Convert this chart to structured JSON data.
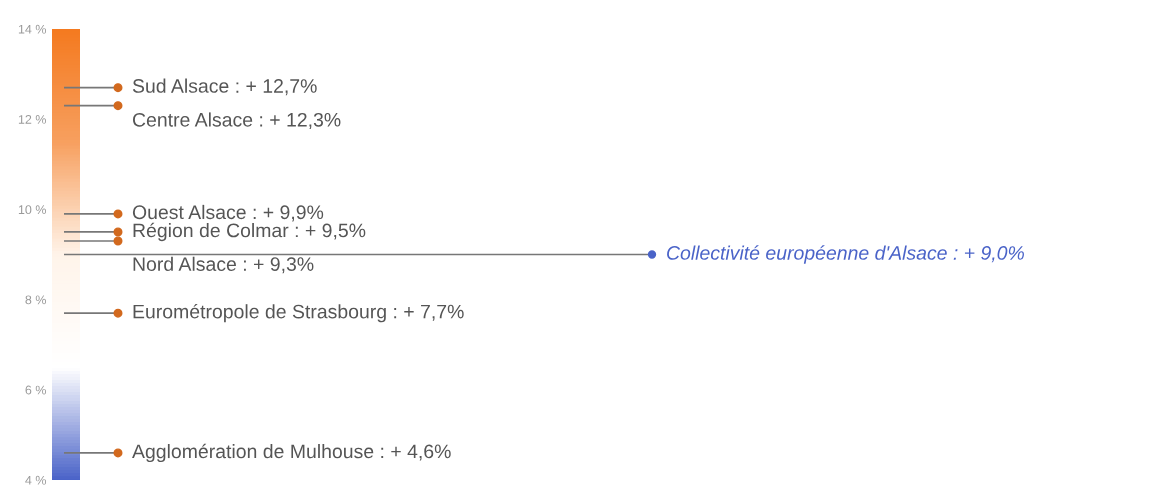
{
  "chart_data": {
    "type": "scatter",
    "categories": [
      null
    ],
    "ylim": [
      4,
      14
    ],
    "yticks": [
      {
        "value": 4,
        "label": "4 %"
      },
      {
        "value": 6,
        "label": "6 %"
      },
      {
        "value": 8,
        "label": "8 %"
      },
      {
        "value": 10,
        "label": "10 %"
      },
      {
        "value": 12,
        "label": "12 %"
      },
      {
        "value": 14,
        "label": "14 %"
      }
    ],
    "marker": "circle",
    "series": [
      {
        "color": "#d2691e",
        "values": [
          12.7
        ],
        "value_labels": [
          "Sud Alsace : + 12,7%"
        ]
      },
      {
        "color": "#d2691e",
        "values": [
          12.3
        ],
        "value_labels": [
          "Centre Alsace : + 12,3%"
        ]
      },
      {
        "color": "#d2691e",
        "values": [
          9.9
        ],
        "value_labels": [
          "Ouest Alsace : + 9,9%"
        ]
      },
      {
        "color": "#d2691e",
        "values": [
          9.5
        ],
        "value_labels": [
          "Région de Colmar : + 9,5%"
        ]
      },
      {
        "color": "#d2691e",
        "values": [
          9.3
        ],
        "value_labels": [
          "Nord Alsace : + 9,3%"
        ]
      },
      {
        "color": "#d2691e",
        "values": [
          7.7
        ],
        "value_labels": [
          "Eurométropole de Strasbourg : + 7,7%"
        ]
      },
      {
        "color": "#d2691e",
        "values": [
          4.6
        ],
        "value_labels": [
          "Agglomération de Mulhouse : + 4,6%"
        ]
      }
    ],
    "ref_lines": [
      {
        "axis": "y",
        "value": 9.0,
        "label": "Collectivité européenne d'Alsace : + 9,0%",
        "color": "#777777"
      }
    ]
  }
}
